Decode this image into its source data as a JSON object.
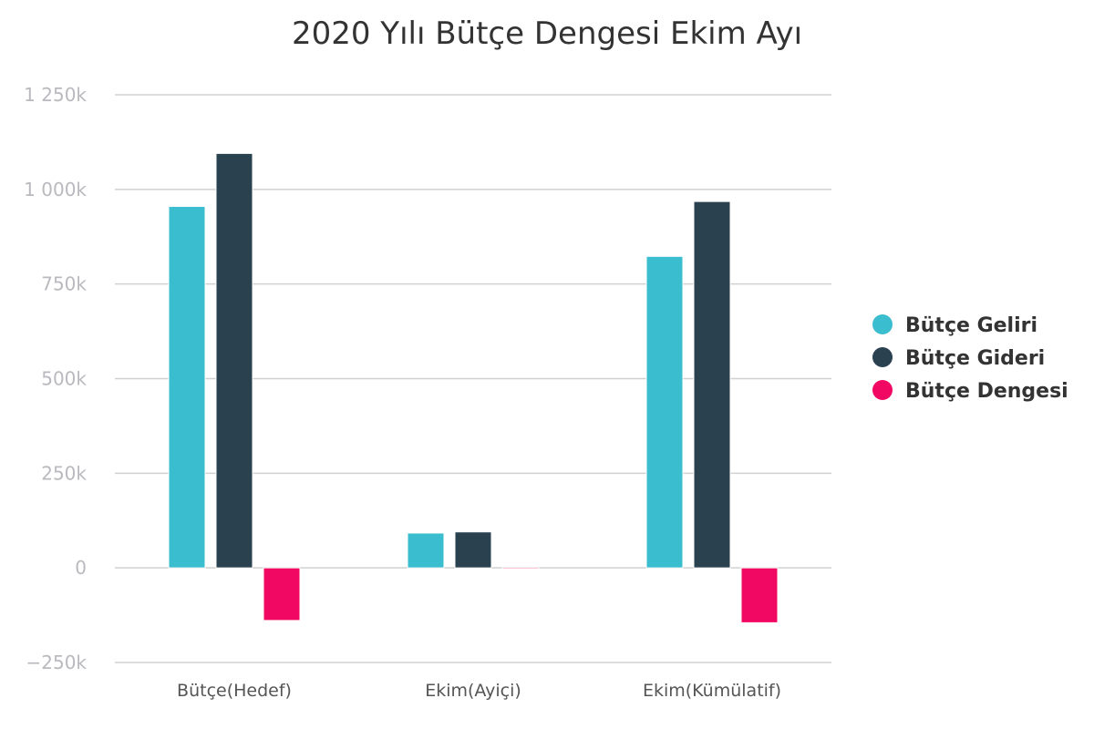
{
  "chart_data": {
    "type": "bar",
    "title": "2020 Yılı Bütçe Dengesi Ekim Ayı",
    "categories": [
      "Bütçe(Hedef)",
      "Ekim(Ayiçi)",
      "Ekim(Kümülatif)"
    ],
    "series": [
      {
        "name": "Bütçe Geliri",
        "color": "#3bbdd0",
        "values": [
          955000,
          92000,
          823000
        ]
      },
      {
        "name": "Bütçe Gideri",
        "color": "#2a4150",
        "values": [
          1095000,
          95000,
          968000
        ]
      },
      {
        "name": "Bütçe Dengesi",
        "color": "#f00862",
        "values": [
          -139000,
          -3000,
          -145000
        ]
      }
    ],
    "ylim": [
      -250000,
      1250000
    ],
    "yticks": [
      {
        "value": 1250000,
        "label": "1 250k"
      },
      {
        "value": 1000000,
        "label": "1 000k"
      },
      {
        "value": 750000,
        "label": "750k"
      },
      {
        "value": 500000,
        "label": "500k"
      },
      {
        "value": 250000,
        "label": "250k"
      },
      {
        "value": 0,
        "label": "0"
      },
      {
        "value": -250000,
        "label": "−250k"
      }
    ],
    "grid": true,
    "legend_position": "right"
  }
}
